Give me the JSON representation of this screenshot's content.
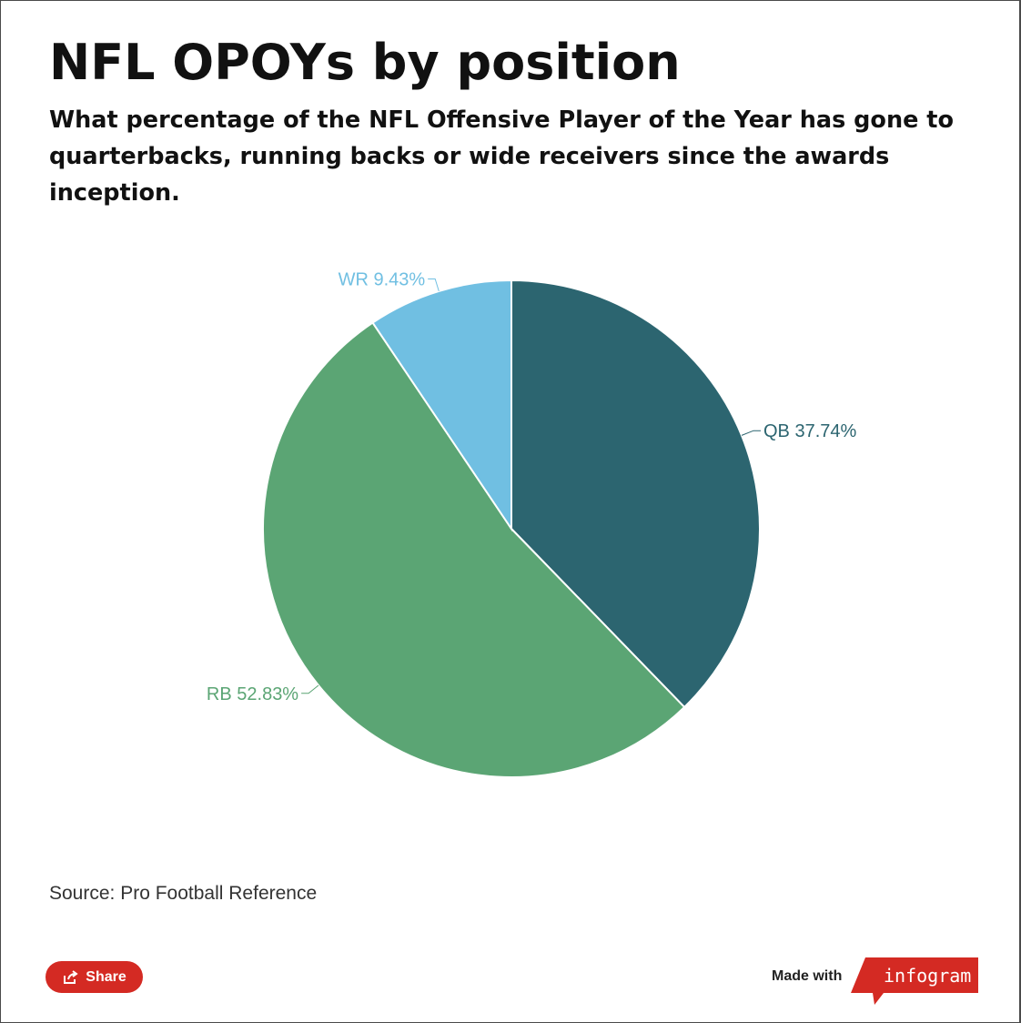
{
  "title": "NFL OPOYs by position",
  "subtitle": "What percentage of the NFL Offensive Player of the Year has gone to quarterbacks, running backs or wide receivers since the awards inception.",
  "source": "Source: Pro Football Reference",
  "share_label": "Share",
  "made_with_label": "Made with",
  "logo_text": "infogram",
  "icons": {
    "share": "share-icon"
  },
  "colors": {
    "brand_red": "#d42a23"
  },
  "chart_data": {
    "type": "pie",
    "title": "NFL OPOYs by position",
    "subtitle": "What percentage of the NFL Offensive Player of the Year has gone to quarterbacks, running backs or wide receivers since the awards inception.",
    "categories": [
      "QB",
      "RB",
      "WR"
    ],
    "values": [
      37.74,
      52.83,
      9.43
    ],
    "labels": [
      "QB 37.74%",
      "RB 52.83%",
      "WR 9.43%"
    ],
    "colors": [
      "#2c6570",
      "#5ba574",
      "#70bfe2"
    ],
    "start_angle": "12 o'clock",
    "direction": "clockwise"
  }
}
